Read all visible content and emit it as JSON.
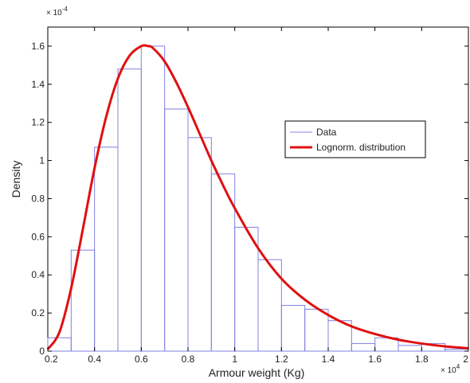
{
  "chart_data": {
    "type": "histogram+line",
    "title": "",
    "xlabel": "Armour weight (Kg)",
    "ylabel": "Density",
    "x_multiplier": "× 10",
    "x_exponent": "4",
    "y_multiplier": "× 10",
    "y_exponent": "-4",
    "xlim": [
      0.2,
      2.0
    ],
    "ylim": [
      0,
      1.7
    ],
    "xticks": [
      0.2,
      0.4,
      0.6,
      0.8,
      1.0,
      1.2,
      1.4,
      1.6,
      1.8,
      2.0
    ],
    "xtick_labels": [
      "0.2",
      "0.4",
      "0.6",
      "0.8",
      "1",
      "1.2",
      "1.4",
      "1.6",
      "1.8",
      "2"
    ],
    "yticks": [
      0,
      0.2,
      0.4,
      0.6,
      0.8,
      1.0,
      1.2,
      1.4,
      1.6
    ],
    "ytick_labels": [
      "0",
      "0.2",
      "0.4",
      "0.6",
      "0.8",
      "1",
      "1.2",
      "1.4",
      "1.6"
    ],
    "grid": false,
    "legend_position": "right-center",
    "series": [
      {
        "name": "Data",
        "type": "histogram",
        "color": "#8080e0",
        "bin_edges": [
          0.2,
          0.3,
          0.4,
          0.5,
          0.6,
          0.7,
          0.8,
          0.9,
          1.0,
          1.1,
          1.2,
          1.3,
          1.4,
          1.5,
          1.6,
          1.7,
          1.8,
          1.9,
          2.0
        ],
        "values": [
          0.07,
          0.53,
          1.07,
          1.48,
          1.6,
          1.27,
          1.12,
          0.93,
          0.65,
          0.48,
          0.24,
          0.22,
          0.16,
          0.04,
          0.07,
          0.03,
          0.04,
          0.01
        ]
      },
      {
        "name": "Lognorm. distribution",
        "type": "line",
        "color": "#e01010",
        "x": [
          0.2,
          0.25,
          0.3,
          0.35,
          0.4,
          0.45,
          0.5,
          0.55,
          0.6,
          0.63,
          0.65,
          0.7,
          0.75,
          0.8,
          0.85,
          0.9,
          0.95,
          1.0,
          1.1,
          1.2,
          1.3,
          1.4,
          1.5,
          1.6,
          1.7,
          1.8,
          1.9,
          2.0
        ],
        "y": [
          0.01,
          0.1,
          0.33,
          0.64,
          0.96,
          1.23,
          1.43,
          1.55,
          1.6,
          1.6,
          1.59,
          1.52,
          1.41,
          1.28,
          1.14,
          1.0,
          0.87,
          0.75,
          0.54,
          0.38,
          0.27,
          0.19,
          0.13,
          0.09,
          0.06,
          0.04,
          0.025,
          0.015
        ]
      }
    ]
  }
}
